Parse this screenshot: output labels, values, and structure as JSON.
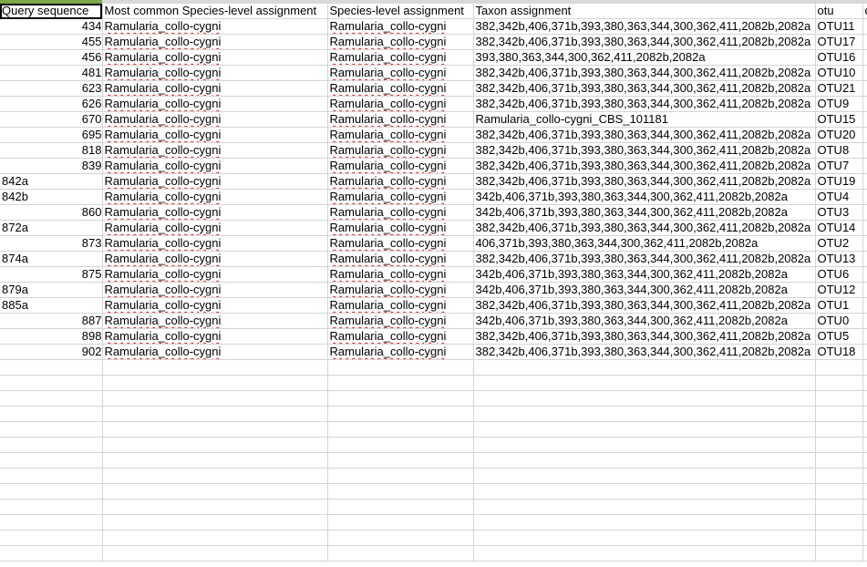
{
  "headers": [
    "Query sequence",
    "Most common Species-level assignment",
    "Species-level assignment",
    "Taxon assignment",
    "otu",
    "c"
  ],
  "rows": [
    {
      "q": "434",
      "m": "Ramularia_collo-cygni",
      "s": "Ramularia_collo-cygni",
      "t": "382,342b,406,371b,393,380,363,344,300,362,411,2082b,2082a",
      "o": "OTU11"
    },
    {
      "q": "455",
      "m": "Ramularia_collo-cygni",
      "s": "Ramularia_collo-cygni",
      "t": "382,342b,406,371b,393,380,363,344,300,362,411,2082b,2082a",
      "o": "OTU17"
    },
    {
      "q": "456",
      "m": "Ramularia_collo-cygni",
      "s": "Ramularia_collo-cygni",
      "t": "393,380,363,344,300,362,411,2082b,2082a",
      "o": "OTU16"
    },
    {
      "q": "481",
      "m": "Ramularia_collo-cygni",
      "s": "Ramularia_collo-cygni",
      "t": "382,342b,406,371b,393,380,363,344,300,362,411,2082b,2082a",
      "o": "OTU10"
    },
    {
      "q": "623",
      "m": "Ramularia_collo-cygni",
      "s": "Ramularia_collo-cygni",
      "t": "382,342b,406,371b,393,380,363,344,300,362,411,2082b,2082a",
      "o": "OTU21"
    },
    {
      "q": "626",
      "m": "Ramularia_collo-cygni",
      "s": "Ramularia_collo-cygni",
      "t": "382,342b,406,371b,393,380,363,344,300,362,411,2082b,2082a",
      "o": "OTU9"
    },
    {
      "q": "670",
      "m": "Ramularia_collo-cygni",
      "s": "Ramularia_collo-cygni",
      "t": "Ramularia_collo-cygni_CBS_101181",
      "o": "OTU15"
    },
    {
      "q": "695",
      "m": "Ramularia_collo-cygni",
      "s": "Ramularia_collo-cygni",
      "t": "382,342b,406,371b,393,380,363,344,300,362,411,2082b,2082a",
      "o": "OTU20"
    },
    {
      "q": "818",
      "m": "Ramularia_collo-cygni",
      "s": "Ramularia_collo-cygni",
      "t": "382,342b,406,371b,393,380,363,344,300,362,411,2082b,2082a",
      "o": "OTU8"
    },
    {
      "q": "839",
      "m": "Ramularia_collo-cygni",
      "s": "Ramularia_collo-cygni",
      "t": "382,342b,406,371b,393,380,363,344,300,362,411,2082b,2082a",
      "o": "OTU7"
    },
    {
      "q": "842a",
      "m": "Ramularia_collo-cygni",
      "s": "Ramularia_collo-cygni",
      "t": "382,342b,406,371b,393,380,363,344,300,362,411,2082b,2082a",
      "o": "OTU19"
    },
    {
      "q": "842b",
      "m": "Ramularia_collo-cygni",
      "s": "Ramularia_collo-cygni",
      "t": "342b,406,371b,393,380,363,344,300,362,411,2082b,2082a",
      "o": "OTU4"
    },
    {
      "q": "860",
      "m": "Ramularia_collo-cygni",
      "s": "Ramularia_collo-cygni",
      "t": "342b,406,371b,393,380,363,344,300,362,411,2082b,2082a",
      "o": "OTU3"
    },
    {
      "q": "872a",
      "m": "Ramularia_collo-cygni",
      "s": "Ramularia_collo-cygni",
      "t": "382,342b,406,371b,393,380,363,344,300,362,411,2082b,2082a",
      "o": "OTU14"
    },
    {
      "q": "873",
      "m": "Ramularia_collo-cygni",
      "s": "Ramularia_collo-cygni",
      "t": "406,371b,393,380,363,344,300,362,411,2082b,2082a",
      "o": "OTU2"
    },
    {
      "q": "874a",
      "m": "Ramularia_collo-cygni",
      "s": "Ramularia_collo-cygni",
      "t": "382,342b,406,371b,393,380,363,344,300,362,411,2082b,2082a",
      "o": "OTU13"
    },
    {
      "q": "875",
      "m": "Ramularia_collo-cygni",
      "s": "Ramularia_collo-cygni",
      "t": "342b,406,371b,393,380,363,344,300,362,411,2082b,2082a",
      "o": "OTU6"
    },
    {
      "q": "879a",
      "m": "Ramularia_collo-cygni",
      "s": "Ramularia_collo-cygni",
      "t": "342b,406,371b,393,380,363,344,300,362,411,2082b,2082a",
      "o": "OTU12"
    },
    {
      "q": "885a",
      "m": "Ramularia_collo-cygni",
      "s": "Ramularia_collo-cygni",
      "t": "382,342b,406,371b,393,380,363,344,300,362,411,2082b,2082a",
      "o": "OTU1"
    },
    {
      "q": "887",
      "m": "Ramularia_collo-cygni",
      "s": "Ramularia_collo-cygni",
      "t": "342b,406,371b,393,380,363,344,300,362,411,2082b,2082a",
      "o": "OTU0"
    },
    {
      "q": "898",
      "m": "Ramularia_collo-cygni",
      "s": "Ramularia_collo-cygni",
      "t": "382,342b,406,371b,393,380,363,344,300,362,411,2082b,2082a",
      "o": "OTU5"
    },
    {
      "q": "902",
      "m": "Ramularia_collo-cygni",
      "s": "Ramularia_collo-cygni",
      "t": "382,342b,406,371b,393,380,363,344,300,362,411,2082b,2082a",
      "o": "OTU18"
    }
  ],
  "empty_rows": 13,
  "colors": {
    "gridline": "#d4d4d4",
    "selected_column_header": "#7aa84a",
    "spellcheck_underline": "#e02020"
  }
}
